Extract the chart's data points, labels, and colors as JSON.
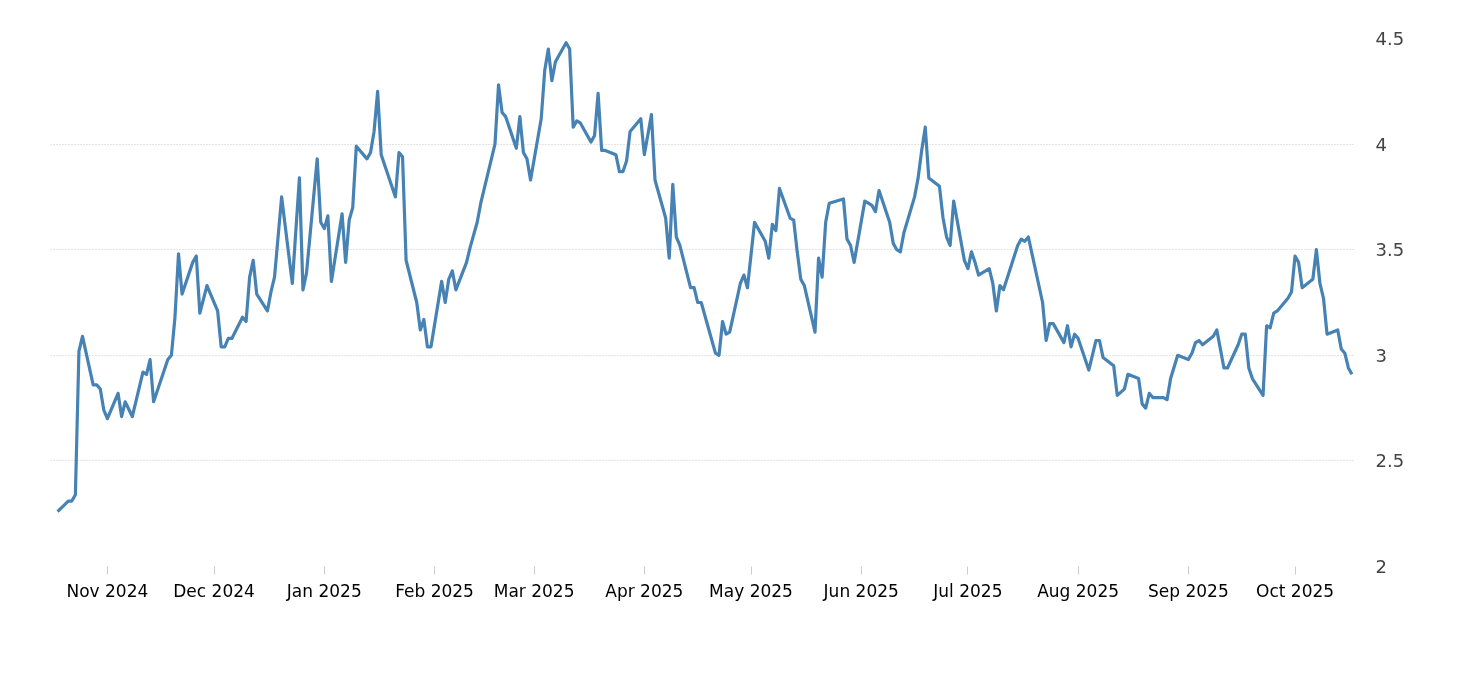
{
  "chart_data": {
    "type": "line",
    "x": [
      "2024-10-18",
      "2024-10-21",
      "2024-10-22",
      "2024-10-23",
      "2024-10-24",
      "2024-10-25",
      "2024-10-28",
      "2024-10-29",
      "2024-10-30",
      "2024-10-31",
      "2024-11-01",
      "2024-11-04",
      "2024-11-05",
      "2024-11-06",
      "2024-11-08",
      "2024-11-11",
      "2024-11-12",
      "2024-11-13",
      "2024-11-14",
      "2024-11-18",
      "2024-11-19",
      "2024-11-20",
      "2024-11-21",
      "2024-11-22",
      "2024-11-25",
      "2024-11-26",
      "2024-11-27",
      "2024-11-29",
      "2024-12-02",
      "2024-12-03",
      "2024-12-04",
      "2024-12-05",
      "2024-12-06",
      "2024-12-09",
      "2024-12-10",
      "2024-12-11",
      "2024-12-12",
      "2024-12-13",
      "2024-12-16",
      "2024-12-17",
      "2024-12-18",
      "2024-12-20",
      "2024-12-23",
      "2024-12-25",
      "2024-12-26",
      "2024-12-27",
      "2024-12-30",
      "2024-12-31",
      "2025-01-01",
      "2025-01-02",
      "2025-01-03",
      "2025-01-06",
      "2025-01-07",
      "2025-01-08",
      "2025-01-09",
      "2025-01-10",
      "2025-01-13",
      "2025-01-14",
      "2025-01-15",
      "2025-01-16",
      "2025-01-17",
      "2025-01-21",
      "2025-01-22",
      "2025-01-23",
      "2025-01-24",
      "2025-01-27",
      "2025-01-28",
      "2025-01-29",
      "2025-01-30",
      "2025-01-31",
      "2025-02-03",
      "2025-02-04",
      "2025-02-05",
      "2025-02-06",
      "2025-02-07",
      "2025-02-10",
      "2025-02-11",
      "2025-02-12",
      "2025-02-13",
      "2025-02-14",
      "2025-02-18",
      "2025-02-19",
      "2025-02-20",
      "2025-02-21",
      "2025-02-24",
      "2025-02-25",
      "2025-02-26",
      "2025-02-27",
      "2025-02-28",
      "2025-03-03",
      "2025-03-04",
      "2025-03-05",
      "2025-03-06",
      "2025-03-07",
      "2025-03-10",
      "2025-03-11",
      "2025-03-12",
      "2025-03-13",
      "2025-03-14",
      "2025-03-17",
      "2025-03-18",
      "2025-03-19",
      "2025-03-20",
      "2025-03-21",
      "2025-03-24",
      "2025-03-25",
      "2025-03-26",
      "2025-03-27",
      "2025-03-28",
      "2025-03-31",
      "2025-04-01",
      "2025-04-03",
      "2025-04-04",
      "2025-04-07",
      "2025-04-08",
      "2025-04-09",
      "2025-04-10",
      "2025-04-11",
      "2025-04-14",
      "2025-04-15",
      "2025-04-16",
      "2025-04-17",
      "2025-04-21",
      "2025-04-22",
      "2025-04-23",
      "2025-04-24",
      "2025-04-25",
      "2025-04-28",
      "2025-04-29",
      "2025-04-30",
      "2025-05-02",
      "2025-05-05",
      "2025-05-06",
      "2025-05-07",
      "2025-05-08",
      "2025-05-09",
      "2025-05-12",
      "2025-05-13",
      "2025-05-14",
      "2025-05-15",
      "2025-05-16",
      "2025-05-19",
      "2025-05-20",
      "2025-05-21",
      "2025-05-22",
      "2025-05-23",
      "2025-05-27",
      "2025-05-28",
      "2025-05-29",
      "2025-05-30",
      "2025-06-02",
      "2025-06-03",
      "2025-06-04",
      "2025-06-05",
      "2025-06-06",
      "2025-06-09",
      "2025-06-10",
      "2025-06-11",
      "2025-06-12",
      "2025-06-13",
      "2025-06-16",
      "2025-06-17",
      "2025-06-18",
      "2025-06-19",
      "2025-06-20",
      "2025-06-23",
      "2025-06-24",
      "2025-06-25",
      "2025-06-26",
      "2025-06-27",
      "2025-06-30",
      "2025-07-01",
      "2025-07-02",
      "2025-07-03",
      "2025-07-04",
      "2025-07-07",
      "2025-07-08",
      "2025-07-09",
      "2025-07-10",
      "2025-07-11",
      "2025-07-15",
      "2025-07-16",
      "2025-07-17",
      "2025-07-18",
      "2025-07-22",
      "2025-07-23",
      "2025-07-24",
      "2025-07-25",
      "2025-07-28",
      "2025-07-29",
      "2025-07-30",
      "2025-07-31",
      "2025-08-01",
      "2025-08-04",
      "2025-08-06",
      "2025-08-07",
      "2025-08-08",
      "2025-08-11",
      "2025-08-12",
      "2025-08-14",
      "2025-08-15",
      "2025-08-18",
      "2025-08-19",
      "2025-08-20",
      "2025-08-21",
      "2025-08-22",
      "2025-08-25",
      "2025-08-26",
      "2025-08-27",
      "2025-08-29",
      "2025-09-01",
      "2025-09-02",
      "2025-09-03",
      "2025-09-04",
      "2025-09-05",
      "2025-09-08",
      "2025-09-09",
      "2025-09-11",
      "2025-09-12",
      "2025-09-15",
      "2025-09-16",
      "2025-09-17",
      "2025-09-18",
      "2025-09-19",
      "2025-09-22",
      "2025-09-23",
      "2025-09-24",
      "2025-09-25",
      "2025-09-26",
      "2025-09-29",
      "2025-09-30",
      "2025-10-01",
      "2025-10-02",
      "2025-10-03",
      "2025-10-06",
      "2025-10-07",
      "2025-10-08",
      "2025-10-09",
      "2025-10-10",
      "2025-10-13",
      "2025-10-14",
      "2025-10-15",
      "2025-10-16",
      "2025-10-17"
    ],
    "series": [
      {
        "color": "#4682b4",
        "values": [
          2.26,
          2.31,
          2.31,
          2.34,
          3.02,
          3.09,
          2.86,
          2.86,
          2.84,
          2.74,
          2.7,
          2.82,
          2.71,
          2.78,
          2.71,
          2.92,
          2.91,
          2.98,
          2.78,
          2.98,
          3.0,
          3.18,
          3.48,
          3.29,
          3.44,
          3.47,
          3.2,
          3.33,
          3.21,
          3.04,
          3.04,
          3.08,
          3.08,
          3.18,
          3.16,
          3.37,
          3.45,
          3.29,
          3.21,
          3.3,
          3.37,
          3.75,
          3.34,
          3.84,
          3.31,
          3.39,
          3.93,
          3.63,
          3.6,
          3.66,
          3.35,
          3.67,
          3.44,
          3.64,
          3.7,
          3.99,
          3.93,
          3.96,
          4.06,
          4.25,
          3.95,
          3.75,
          3.96,
          3.94,
          3.45,
          3.25,
          3.12,
          3.17,
          3.04,
          3.04,
          3.35,
          3.25,
          3.36,
          3.4,
          3.31,
          3.44,
          3.51,
          3.57,
          3.63,
          3.72,
          4.0,
          4.28,
          4.15,
          4.13,
          3.98,
          4.13,
          3.96,
          3.93,
          3.83,
          4.12,
          4.35,
          4.45,
          4.3,
          4.39,
          4.48,
          4.45,
          4.08,
          4.11,
          4.1,
          4.01,
          4.04,
          4.24,
          3.97,
          3.97,
          3.95,
          3.87,
          3.87,
          3.92,
          4.06,
          4.12,
          3.95,
          4.14,
          3.83,
          3.65,
          3.46,
          3.81,
          3.56,
          3.52,
          3.32,
          3.32,
          3.25,
          3.25,
          3.01,
          3.0,
          3.16,
          3.1,
          3.11,
          3.34,
          3.38,
          3.32,
          3.63,
          3.54,
          3.46,
          3.62,
          3.59,
          3.79,
          3.65,
          3.64,
          3.49,
          3.36,
          3.33,
          3.11,
          3.46,
          3.37,
          3.63,
          3.72,
          3.74,
          3.55,
          3.52,
          3.44,
          3.73,
          3.72,
          3.71,
          3.68,
          3.78,
          3.63,
          3.53,
          3.5,
          3.49,
          3.58,
          3.75,
          3.84,
          3.97,
          4.08,
          3.84,
          3.8,
          3.65,
          3.56,
          3.52,
          3.73,
          3.45,
          3.41,
          3.49,
          3.44,
          3.38,
          3.41,
          3.34,
          3.21,
          3.33,
          3.31,
          3.52,
          3.55,
          3.54,
          3.56,
          3.25,
          3.07,
          3.15,
          3.15,
          3.06,
          3.14,
          3.04,
          3.1,
          3.08,
          2.93,
          3.07,
          3.07,
          2.99,
          2.95,
          2.81,
          2.84,
          2.91,
          2.89,
          2.77,
          2.75,
          2.82,
          2.8,
          2.8,
          2.79,
          2.89,
          3.0,
          2.98,
          3.01,
          3.06,
          3.07,
          3.05,
          3.09,
          3.12,
          2.94,
          2.94,
          3.05,
          3.1,
          3.1,
          2.94,
          2.89,
          2.81,
          3.14,
          3.13,
          3.2,
          3.21,
          3.27,
          3.3,
          3.47,
          3.44,
          3.32,
          3.36,
          3.5,
          3.34,
          3.27,
          3.1,
          3.12,
          3.03,
          3.01,
          2.94,
          2.91
        ]
      }
    ],
    "xlim": [
      "2024-10-16",
      "2025-10-18"
    ],
    "ylim": [
      2,
      4.5
    ],
    "xticks": [
      {
        "value": "2024-11-01",
        "label": "Nov 2024"
      },
      {
        "value": "2024-12-01",
        "label": "Dec 2024"
      },
      {
        "value": "2025-01-01",
        "label": "Jan 2025"
      },
      {
        "value": "2025-02-01",
        "label": "Feb 2025"
      },
      {
        "value": "2025-03-01",
        "label": "Mar 2025"
      },
      {
        "value": "2025-04-01",
        "label": "Apr 2025"
      },
      {
        "value": "2025-05-01",
        "label": "May 2025"
      },
      {
        "value": "2025-06-01",
        "label": "Jun 2025"
      },
      {
        "value": "2025-07-01",
        "label": "Jul 2025"
      },
      {
        "value": "2025-08-01",
        "label": "Aug 2025"
      },
      {
        "value": "2025-09-01",
        "label": "Sep 2025"
      },
      {
        "value": "2025-10-01",
        "label": "Oct 2025"
      }
    ],
    "yticks": [
      2,
      2.5,
      3,
      3.5,
      4,
      4.5
    ],
    "grid": true
  }
}
